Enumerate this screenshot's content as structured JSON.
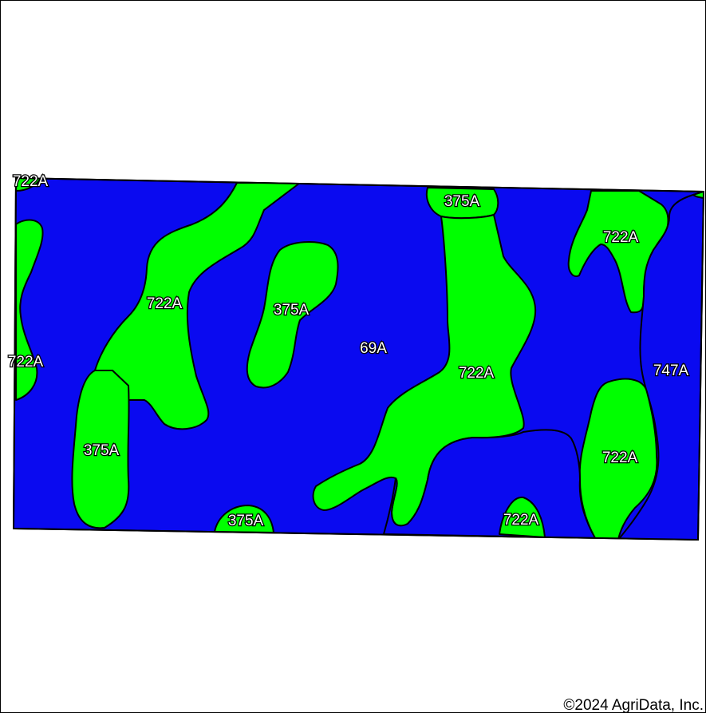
{
  "map": {
    "colors": {
      "map_unit_69A": "#0a0af0",
      "map_unit_722A": "#00ff00",
      "map_unit_375A": "#00ff00",
      "map_unit_747A": "#0a0af0",
      "outline": "#000000",
      "background": "#ffffff"
    },
    "labels": {
      "l722a_top_left": "722A",
      "l722a_upper_center": "722A",
      "l375a_center": "375A",
      "l69a": "69A",
      "l375a_top": "375A",
      "l722a_upper_right": "722A",
      "l722a_left_edge": "722A",
      "l375a_lower_left": "375A",
      "l722a_center": "722A",
      "l747a": "747A",
      "l722a_lower_right": "722A",
      "l375a_bottom": "375A",
      "l722a_bottom": "722A"
    }
  },
  "footer": {
    "copyright": "©2024 AgriData, Inc."
  }
}
